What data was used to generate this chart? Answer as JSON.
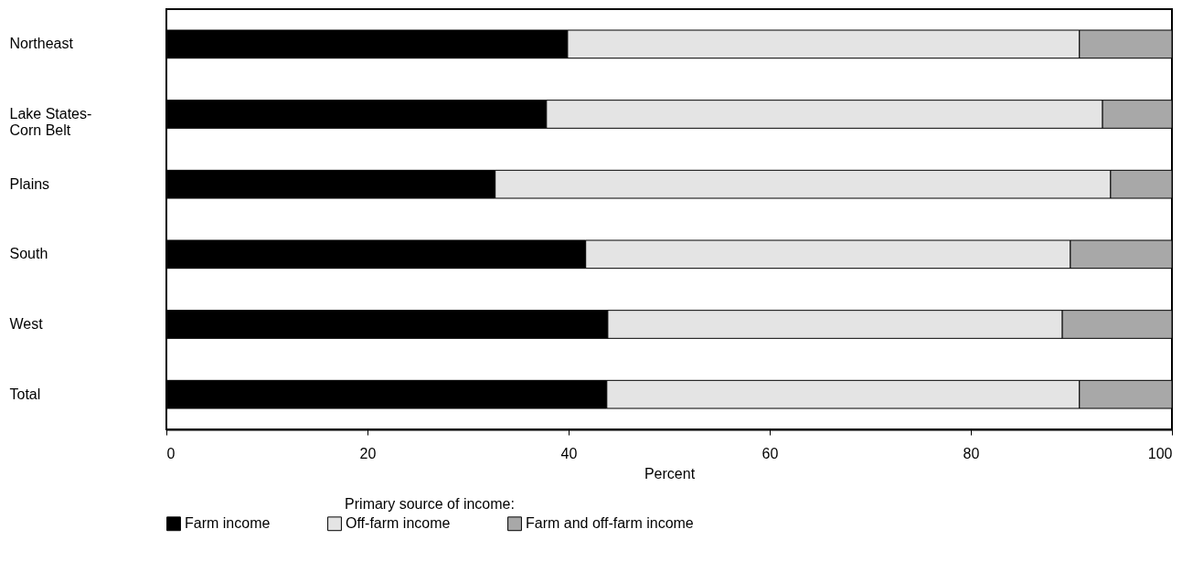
{
  "chart_data": {
    "type": "bar",
    "orientation": "horizontal",
    "stacked": true,
    "categories": [
      "Northeast",
      "Lake States-\nCorn Belt",
      "Plains",
      "South",
      "West",
      "Total"
    ],
    "series": [
      {
        "name": "Farm income",
        "color": "#000000",
        "values": [
          39.9,
          37.8,
          32.7,
          41.7,
          43.9,
          43.8
        ]
      },
      {
        "name": "Off-farm income",
        "color": "#e4e4e4",
        "values": [
          50.9,
          55.3,
          61.2,
          48.2,
          45.2,
          47.0
        ]
      },
      {
        "name": "Farm and off-farm income",
        "color": "#a8a8a8",
        "values": [
          9.2,
          6.9,
          6.1,
          10.1,
          10.9,
          9.2
        ]
      }
    ],
    "xlabel": "Percent",
    "legend_title": "Primary source of income:",
    "xlim": [
      0,
      100
    ],
    "xticks": [
      0,
      20,
      40,
      60,
      80,
      100
    ],
    "grid": false,
    "legend": "bottom"
  }
}
